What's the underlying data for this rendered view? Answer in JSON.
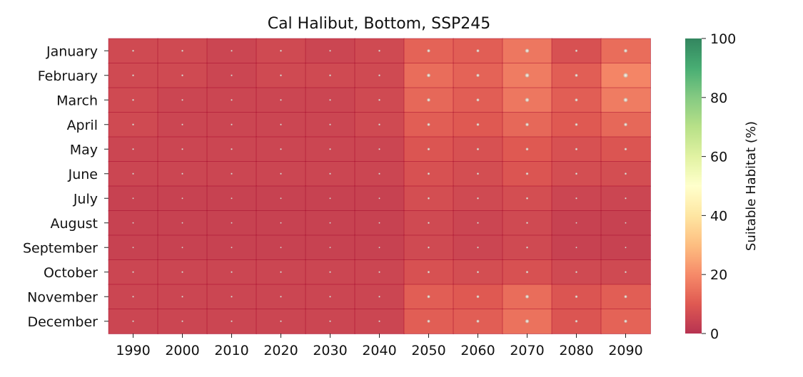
{
  "chart_data": {
    "type": "heatmap",
    "title": "Cal Halibut, Bottom, SSP245",
    "xlabel": "",
    "ylabel": "",
    "x_categories": [
      "1990",
      "2000",
      "2010",
      "2020",
      "2030",
      "2040",
      "2050",
      "2060",
      "2070",
      "2080",
      "2090"
    ],
    "y_categories": [
      "January",
      "February",
      "March",
      "April",
      "May",
      "June",
      "July",
      "August",
      "September",
      "October",
      "November",
      "December"
    ],
    "values": [
      [
        6,
        6,
        5,
        6,
        5,
        6,
        12,
        11,
        16,
        8,
        14
      ],
      [
        6,
        6,
        5,
        6,
        6,
        6,
        14,
        12,
        17,
        11,
        19
      ],
      [
        6,
        5,
        5,
        5,
        5,
        6,
        13,
        11,
        16,
        11,
        17
      ],
      [
        6,
        5,
        5,
        5,
        5,
        6,
        11,
        10,
        13,
        10,
        13
      ],
      [
        5,
        5,
        5,
        5,
        5,
        5,
        9,
        8,
        10,
        8,
        9
      ],
      [
        5,
        5,
        5,
        5,
        5,
        5,
        8,
        7,
        9,
        7,
        7
      ],
      [
        4,
        4,
        4,
        4,
        4,
        4,
        7,
        6,
        7,
        5,
        5
      ],
      [
        4,
        4,
        4,
        4,
        4,
        4,
        6,
        5,
        6,
        4,
        4
      ],
      [
        4,
        4,
        4,
        4,
        4,
        4,
        6,
        5,
        6,
        4,
        4
      ],
      [
        5,
        5,
        5,
        5,
        5,
        5,
        8,
        7,
        8,
        6,
        6
      ],
      [
        5,
        5,
        5,
        5,
        5,
        5,
        11,
        10,
        14,
        9,
        11
      ],
      [
        5,
        5,
        5,
        5,
        5,
        5,
        11,
        11,
        15,
        9,
        12
      ]
    ],
    "colorbar": {
      "label": "Suitable Habitat (%)",
      "range": [
        0,
        100
      ],
      "ticks": [
        0,
        20,
        40,
        60,
        80,
        100
      ],
      "colormap": "RdYlGn"
    },
    "grid": false
  }
}
